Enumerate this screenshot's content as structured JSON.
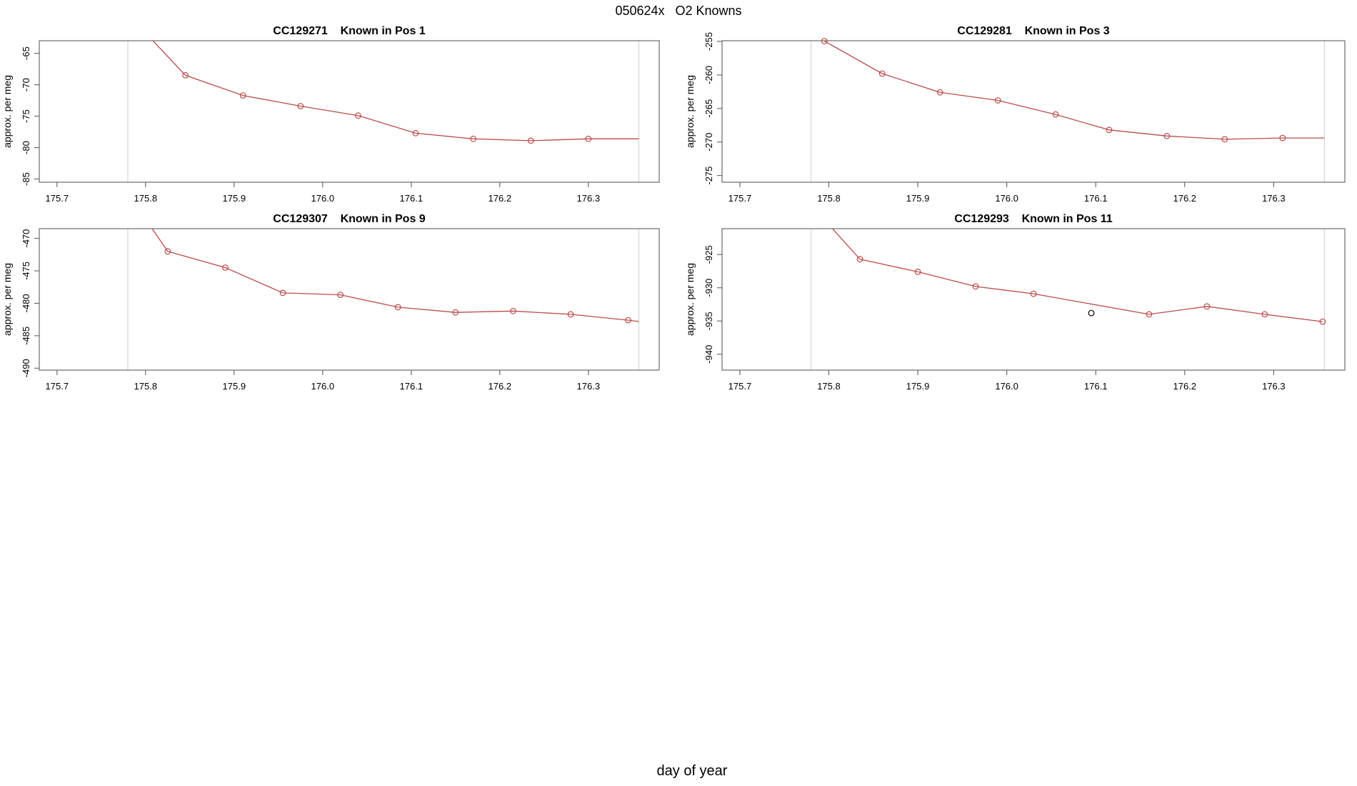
{
  "figure": {
    "title": "050624x   O2 Knowns",
    "xlabel": "day of year"
  },
  "colors": {
    "series": "#bc4b4b",
    "outlier": "#000000",
    "guide": "#d4d4d4",
    "frame": "#5e5e5e",
    "text": "#000000",
    "background": "#ffffff"
  },
  "chart_data": [
    {
      "type": "line",
      "sample_id": "CC129271",
      "position_label": "Known in Pos 1",
      "ylabel": "approx. per meg",
      "xlim": [
        175.68,
        176.38
      ],
      "ylim": [
        -85.5,
        -63.0
      ],
      "xtick_labels": [
        "175.7",
        "175.8",
        "175.9",
        "176.0",
        "176.1",
        "176.2",
        "176.3"
      ],
      "ytick_labels": [
        "-85",
        "-80",
        "-75",
        "-70",
        "-65"
      ],
      "guide_x": [
        175.78,
        176.357
      ],
      "line": [
        [
          175.805,
          -62.5
        ],
        [
          175.845,
          -68.5
        ],
        [
          175.91,
          -71.7
        ],
        [
          175.975,
          -73.4
        ],
        [
          176.04,
          -74.9
        ],
        [
          176.105,
          -77.7
        ],
        [
          176.17,
          -78.6
        ],
        [
          176.235,
          -78.9
        ],
        [
          176.3,
          -78.6
        ],
        [
          176.357,
          -78.6
        ]
      ],
      "markers": [
        [
          175.845,
          -68.5
        ],
        [
          175.91,
          -71.7
        ],
        [
          175.975,
          -73.4
        ],
        [
          176.04,
          -74.9
        ],
        [
          176.105,
          -77.7
        ],
        [
          176.17,
          -78.6
        ],
        [
          176.235,
          -78.9
        ],
        [
          176.3,
          -78.6
        ]
      ],
      "outliers": []
    },
    {
      "type": "line",
      "sample_id": "CC129281",
      "position_label": "Known in Pos 3",
      "ylabel": "approx. per meg",
      "xlim": [
        175.68,
        176.38
      ],
      "ylim": [
        -276.0,
        -254.9
      ],
      "xtick_labels": [
        "175.7",
        "175.8",
        "175.9",
        "176.0",
        "176.1",
        "176.2",
        "176.3"
      ],
      "ytick_labels": [
        "-275",
        "-270",
        "-265",
        "-260",
        "-255"
      ],
      "guide_x": [
        175.78,
        176.357
      ],
      "line": [
        [
          175.795,
          -254.95
        ],
        [
          175.86,
          -259.8
        ],
        [
          175.925,
          -262.6
        ],
        [
          175.99,
          -263.8
        ],
        [
          176.055,
          -265.9
        ],
        [
          176.115,
          -268.2
        ],
        [
          176.18,
          -269.1
        ],
        [
          176.245,
          -269.6
        ],
        [
          176.31,
          -269.4
        ],
        [
          176.357,
          -269.4
        ]
      ],
      "markers": [
        [
          175.795,
          -254.95
        ],
        [
          175.86,
          -259.8
        ],
        [
          175.925,
          -262.6
        ],
        [
          175.99,
          -263.8
        ],
        [
          176.055,
          -265.9
        ],
        [
          176.115,
          -268.2
        ],
        [
          176.18,
          -269.1
        ],
        [
          176.245,
          -269.6
        ],
        [
          176.31,
          -269.4
        ]
      ],
      "outliers": []
    },
    {
      "type": "line",
      "sample_id": "CC129307",
      "position_label": "Known in Pos 9",
      "ylabel": "approx. per meg",
      "xlim": [
        175.68,
        176.38
      ],
      "ylim": [
        -490.3,
        -468.5
      ],
      "xtick_labels": [
        "175.7",
        "175.8",
        "175.9",
        "176.0",
        "176.1",
        "176.2",
        "176.3"
      ],
      "ytick_labels": [
        "-490",
        "-485",
        "-480",
        "-475",
        "-470"
      ],
      "guide_x": [
        175.78,
        176.357
      ],
      "line": [
        [
          175.8,
          -467.0
        ],
        [
          175.825,
          -472.0
        ],
        [
          175.89,
          -474.5
        ],
        [
          175.955,
          -478.4
        ],
        [
          176.02,
          -478.7
        ],
        [
          176.085,
          -480.6
        ],
        [
          176.15,
          -481.4
        ],
        [
          176.215,
          -481.2
        ],
        [
          176.28,
          -481.7
        ],
        [
          176.345,
          -482.6
        ],
        [
          176.357,
          -482.8
        ]
      ],
      "markers": [
        [
          175.825,
          -472.0
        ],
        [
          175.89,
          -474.5
        ],
        [
          175.955,
          -478.4
        ],
        [
          176.02,
          -478.7
        ],
        [
          176.085,
          -480.6
        ],
        [
          176.15,
          -481.4
        ],
        [
          176.215,
          -481.2
        ],
        [
          176.28,
          -481.7
        ],
        [
          176.345,
          -482.6
        ]
      ],
      "outliers": []
    },
    {
      "type": "line",
      "sample_id": "CC129293",
      "position_label": "Known in Pos 11",
      "ylabel": "approx. per meg",
      "xlim": [
        175.68,
        176.38
      ],
      "ylim": [
        -942.4,
        -921.1
      ],
      "xtick_labels": [
        "175.7",
        "175.8",
        "175.9",
        "176.0",
        "176.1",
        "176.2",
        "176.3"
      ],
      "ytick_labels": [
        "-940",
        "-935",
        "-930",
        "-925"
      ],
      "guide_x": [
        175.78,
        176.357
      ],
      "line": [
        [
          175.8,
          -920.5
        ],
        [
          175.835,
          -925.7
        ],
        [
          175.9,
          -927.6
        ],
        [
          175.965,
          -929.8
        ],
        [
          176.03,
          -930.9
        ],
        [
          176.16,
          -934.0
        ],
        [
          176.225,
          -932.8
        ],
        [
          176.29,
          -934.0
        ],
        [
          176.355,
          -935.1
        ]
      ],
      "markers": [
        [
          175.835,
          -925.7
        ],
        [
          175.9,
          -927.6
        ],
        [
          175.965,
          -929.8
        ],
        [
          176.03,
          -930.9
        ],
        [
          176.16,
          -934.0
        ],
        [
          176.225,
          -932.8
        ],
        [
          176.29,
          -934.0
        ],
        [
          176.355,
          -935.1
        ]
      ],
      "outliers": [
        [
          176.095,
          -933.8
        ]
      ]
    }
  ]
}
